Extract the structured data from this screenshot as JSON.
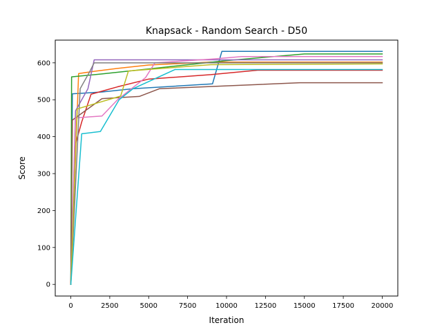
{
  "chart_data": {
    "type": "line",
    "title": "Knapsack - Random Search - D50",
    "xlabel": "Iteration",
    "ylabel": "Score",
    "xlim": [
      -1000,
      21000
    ],
    "ylim": [
      -31.5,
      661.5
    ],
    "xticks": [
      0,
      2500,
      5000,
      7500,
      10000,
      12500,
      15000,
      17500,
      20000
    ],
    "yticks": [
      0,
      100,
      200,
      300,
      400,
      500,
      600
    ],
    "grid": false,
    "legend": "none",
    "series": [
      {
        "color": "#1f77b4",
        "x": [
          0,
          100,
          2000,
          4000,
          9100,
          9700,
          20000
        ],
        "y": [
          0,
          516,
          521,
          530,
          543,
          631,
          631
        ]
      },
      {
        "color": "#ff7f0e",
        "x": [
          0,
          500,
          1500,
          3000,
          5000,
          9000,
          20000
        ],
        "y": [
          0,
          571,
          577,
          585,
          594,
          602,
          602
        ]
      },
      {
        "color": "#2ca02c",
        "x": [
          0,
          50,
          2000,
          6000,
          10000,
          15000,
          20000
        ],
        "y": [
          0,
          562,
          570,
          588,
          606,
          624,
          624
        ]
      },
      {
        "color": "#d62728",
        "x": [
          0,
          300,
          700,
          1300,
          3000,
          5000,
          9000,
          12000,
          20000
        ],
        "y": [
          0,
          380,
          440,
          515,
          535,
          556,
          568,
          580,
          580
        ]
      },
      {
        "color": "#9467bd",
        "x": [
          0,
          300,
          1100,
          1500,
          20000
        ],
        "y": [
          0,
          470,
          530,
          608,
          608
        ]
      },
      {
        "color": "#8c564b",
        "x": [
          0,
          100,
          2000,
          4400,
          5700,
          14700,
          20000
        ],
        "y": [
          0,
          445,
          503,
          509,
          530,
          546,
          546
        ]
      },
      {
        "color": "#e377c2",
        "x": [
          0,
          300,
          2000,
          3000,
          4800,
          5400,
          9000,
          11000,
          20000
        ],
        "y": [
          0,
          451,
          456,
          500,
          560,
          600,
          610,
          617,
          617
        ]
      },
      {
        "color": "#7f7f7f",
        "x": [
          0,
          600,
          1200,
          1500,
          20000
        ],
        "y": [
          0,
          530,
          575,
          600,
          600
        ]
      },
      {
        "color": "#bcbd22",
        "x": [
          0,
          400,
          3200,
          3700,
          9000,
          20000
        ],
        "y": [
          0,
          475,
          510,
          578,
          595,
          597
        ]
      },
      {
        "color": "#17becf",
        "x": [
          0,
          700,
          1900,
          3100,
          4000,
          6700,
          20000
        ],
        "y": [
          0,
          408,
          414,
          500,
          530,
          582,
          582
        ]
      }
    ]
  }
}
